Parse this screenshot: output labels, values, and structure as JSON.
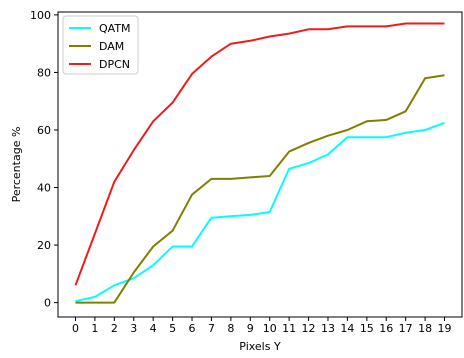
{
  "chart_data": {
    "type": "line",
    "title": "",
    "xlabel": "Pixels Y",
    "ylabel": "Percentage %",
    "x": [
      0,
      1,
      2,
      3,
      4,
      5,
      6,
      7,
      8,
      9,
      10,
      11,
      12,
      13,
      14,
      15,
      16,
      17,
      18,
      19
    ],
    "xlim": [
      -0.9,
      19.9
    ],
    "ylim": [
      -5,
      101
    ],
    "yticks": [
      0,
      20,
      40,
      60,
      80,
      100
    ],
    "grid": false,
    "legend": "top-left",
    "series": [
      {
        "name": "QATM",
        "color": "#00ffff",
        "values": [
          0.5,
          2,
          6,
          8.5,
          13,
          19.5,
          19.5,
          29.5,
          30,
          30.5,
          31.5,
          46.5,
          48.5,
          51.5,
          57.5,
          57.5,
          57.5,
          59,
          60,
          62.5
        ]
      },
      {
        "name": "DAM",
        "color": "#808000",
        "values": [
          0,
          0,
          0,
          10.5,
          19.5,
          25,
          37.5,
          43,
          43,
          43.5,
          44,
          52.5,
          55.5,
          58,
          60,
          63,
          63.5,
          66.5,
          78,
          79
        ]
      },
      {
        "name": "DPCN",
        "color": "#ee1c1c",
        "values": [
          6,
          24,
          42,
          53,
          63,
          69.5,
          79.5,
          85.5,
          90,
          91,
          92.5,
          93.5,
          95,
          95,
          96,
          96,
          96,
          97,
          97,
          97
        ]
      }
    ]
  }
}
